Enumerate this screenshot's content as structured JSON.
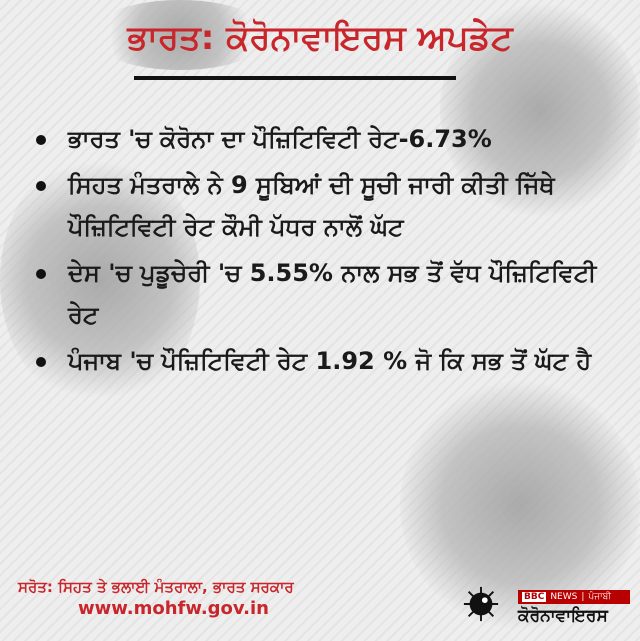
{
  "title": "ਭਾਰਤ: ਕੋਰੋਨਾਵਾਇਰਸ ਅਪਡੇਟ",
  "bullets": [
    "ਭਾਰਤ 'ਚ ਕੋਰੋਨਾ ਦਾ ਪੌਜ਼ਿਟਿਵਿਟੀ ਰੇਟ-6.73%",
    "ਸਿਹਤ ਮੰਤਰਾਲੇ ਨੇ 9 ਸੂਬਿਆਂ ਦੀ ਸੂਚੀ ਜਾਰੀ ਕੀਤੀ ਜਿੱਥੇ ਪੌਜ਼ਿਟਿਵਿਟੀ ਰੇਟ ਕੌਮੀ ਪੱਧਰ ਨਾਲੋਂ ਘੱਟ",
    "ਦੇਸ 'ਚ ਪੁਡੂਚੇਰੀ 'ਚ 5.55% ਨਾਲ ਸਭ ਤੋਂ ਵੱਧ ਪੌਜ਼ਿਟਿਵਿਟੀ ਰੇਟ",
    "ਪੰਜਾਬ 'ਚ ਪੌਜ਼ਿਟਿਵਿਟੀ ਰੇਟ 1.92 % ਜੋ ਕਿ ਸਭ ਤੋਂ ਘੱਟ ਹੈ"
  ],
  "source": "ਸਰੋਤ: ਸਿਹਤ ਤੇ ਭਲਾਈ ਮੰਤਰਾਲਾ, ਭਾਰਤ ਸਰਕਾਰ",
  "url": "www.mohfw.gov.in",
  "logo": {
    "bbc": "BBC",
    "news": "NEWS",
    "lang": "ਪੰਜਾਬੀ",
    "tag": "ਕੋਰੋਨਾਵਾਇਰਸ",
    "icon": "virus-icon"
  },
  "colors": {
    "accent": "#c8262b",
    "bbc_red": "#b80000"
  }
}
